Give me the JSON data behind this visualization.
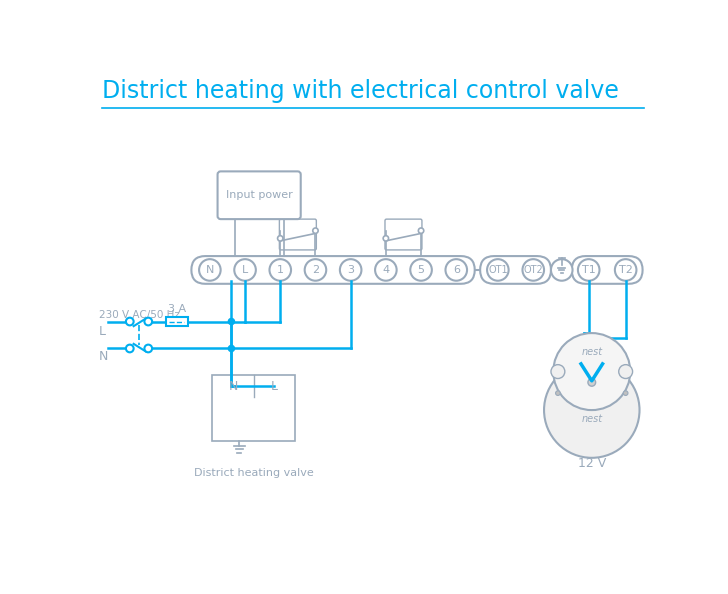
{
  "title": "District heating with electrical control valve",
  "title_color": "#00AEEF",
  "title_fontsize": 17,
  "bg_color": "#FFFFFF",
  "wire_color": "#00AEEF",
  "gray_color": "#9AAABB",
  "terminal_labels_main": [
    "N",
    "L",
    "1",
    "2",
    "3",
    "4",
    "5",
    "6"
  ],
  "terminal_labels_ot": [
    "OT1",
    "OT2"
  ],
  "terminal_labels_t": [
    "T1",
    "T2"
  ],
  "fuse_label": "3 A",
  "input_power_label": "Input power",
  "district_valve_label": "District heating valve",
  "nest_label": "nest",
  "v12_label": "12 V",
  "ac_label": "230 V AC/50 Hz",
  "L_label": "L",
  "N_label": "N"
}
